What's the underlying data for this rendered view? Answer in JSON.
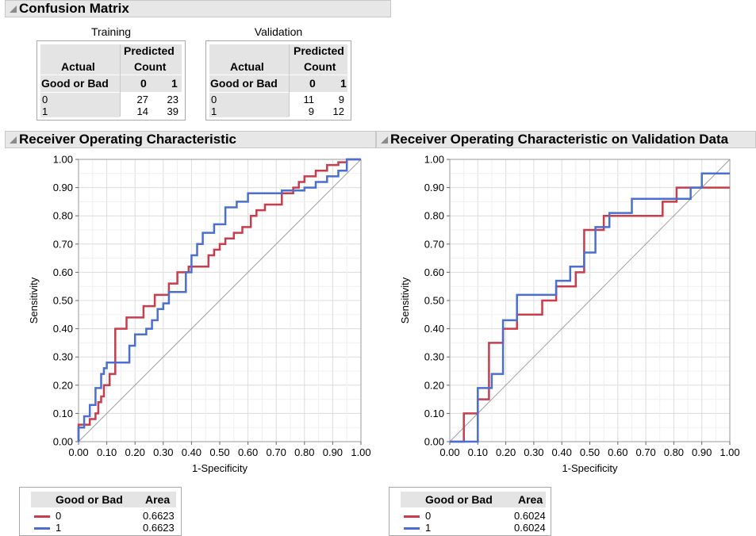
{
  "confusion_matrix": {
    "title": "Confusion Matrix",
    "tables": [
      {
        "caption": "Training",
        "header_actual": "Actual",
        "header_predicted": "Predicted",
        "header_count": "Count",
        "row_label": "Good or Bad",
        "col_labels": [
          "0",
          "1"
        ],
        "rows": [
          {
            "label": "0",
            "values": [
              "27",
              "23"
            ]
          },
          {
            "label": "1",
            "values": [
              "14",
              "39"
            ]
          }
        ]
      },
      {
        "caption": "Validation",
        "header_actual": "Actual",
        "header_predicted": "Predicted",
        "header_count": "Count",
        "row_label": "Good or Bad",
        "col_labels": [
          "0",
          "1"
        ],
        "rows": [
          {
            "label": "0",
            "values": [
              "11",
              "9"
            ]
          },
          {
            "label": "1",
            "values": [
              "9",
              "12"
            ]
          }
        ]
      }
    ]
  },
  "colors": {
    "series0": "#c83c4c",
    "series1": "#4a6fd0",
    "diagonal": "#a0a0a0",
    "grid": "#e2e2e2"
  },
  "chart_data": [
    {
      "type": "line",
      "title": "Receiver Operating Characteristic",
      "xlabel": "1-Specificity",
      "ylabel": "Sensitivity",
      "xlim": [
        0,
        1
      ],
      "ylim": [
        0,
        1
      ],
      "grid": true,
      "x_ticks": [
        "0.00",
        "0.10",
        "0.20",
        "0.30",
        "0.40",
        "0.50",
        "0.60",
        "0.70",
        "0.80",
        "0.90",
        "1.00"
      ],
      "y_ticks": [
        "0.00",
        "0.10",
        "0.20",
        "0.30",
        "0.40",
        "0.50",
        "0.60",
        "0.70",
        "0.80",
        "0.90",
        "1.00"
      ],
      "legend": {
        "header_label": "Good or Bad",
        "header_value": "Area",
        "placement": "below"
      },
      "series": [
        {
          "name": "0",
          "area": "0.6623",
          "x": [
            0,
            0,
            0.02,
            0.04,
            0.04,
            0.06,
            0.06,
            0.07,
            0.07,
            0.08,
            0.08,
            0.09,
            0.09,
            0.11,
            0.11,
            0.13,
            0.13,
            0.17,
            0.17,
            0.23,
            0.23,
            0.27,
            0.27,
            0.32,
            0.32,
            0.35,
            0.35,
            0.39,
            0.39,
            0.46,
            0.46,
            0.48,
            0.48,
            0.5,
            0.5,
            0.52,
            0.52,
            0.55,
            0.55,
            0.58,
            0.58,
            0.61,
            0.61,
            0.63,
            0.63,
            0.66,
            0.66,
            0.72,
            0.72,
            0.76,
            0.76,
            0.78,
            0.78,
            0.8,
            0.8,
            0.84,
            0.84,
            0.88,
            0.88,
            0.92,
            0.92,
            0.95,
            0.95,
            1.0
          ],
          "y": [
            0,
            0.06,
            0.06,
            0.06,
            0.08,
            0.08,
            0.1,
            0.1,
            0.14,
            0.14,
            0.16,
            0.16,
            0.2,
            0.2,
            0.24,
            0.24,
            0.4,
            0.4,
            0.44,
            0.44,
            0.48,
            0.48,
            0.52,
            0.52,
            0.56,
            0.56,
            0.6,
            0.6,
            0.62,
            0.62,
            0.66,
            0.66,
            0.68,
            0.68,
            0.7,
            0.7,
            0.72,
            0.72,
            0.74,
            0.74,
            0.76,
            0.76,
            0.8,
            0.8,
            0.82,
            0.82,
            0.84,
            0.84,
            0.88,
            0.88,
            0.9,
            0.9,
            0.92,
            0.92,
            0.94,
            0.94,
            0.96,
            0.96,
            0.98,
            0.98,
            0.99,
            0.99,
            1.0,
            1.0
          ]
        },
        {
          "name": "1",
          "area": "0.6623",
          "x": [
            0,
            0,
            0.02,
            0.02,
            0.04,
            0.04,
            0.06,
            0.06,
            0.08,
            0.08,
            0.09,
            0.09,
            0.1,
            0.1,
            0.18,
            0.18,
            0.2,
            0.2,
            0.24,
            0.24,
            0.26,
            0.26,
            0.28,
            0.28,
            0.3,
            0.3,
            0.32,
            0.32,
            0.38,
            0.38,
            0.4,
            0.4,
            0.42,
            0.42,
            0.44,
            0.44,
            0.48,
            0.48,
            0.52,
            0.52,
            0.56,
            0.56,
            0.6,
            0.6,
            0.72,
            0.72,
            0.8,
            0.8,
            0.84,
            0.84,
            0.88,
            0.88,
            0.92,
            0.92,
            0.95,
            0.95,
            1.0
          ],
          "y": [
            0,
            0.05,
            0.05,
            0.09,
            0.09,
            0.13,
            0.13,
            0.19,
            0.19,
            0.24,
            0.24,
            0.26,
            0.26,
            0.28,
            0.28,
            0.34,
            0.34,
            0.38,
            0.38,
            0.4,
            0.4,
            0.43,
            0.43,
            0.47,
            0.47,
            0.49,
            0.49,
            0.53,
            0.53,
            0.6,
            0.6,
            0.66,
            0.66,
            0.7,
            0.7,
            0.74,
            0.74,
            0.77,
            0.77,
            0.83,
            0.83,
            0.85,
            0.85,
            0.88,
            0.88,
            0.89,
            0.89,
            0.9,
            0.9,
            0.92,
            0.92,
            0.94,
            0.94,
            0.96,
            0.96,
            1.0,
            1.0
          ]
        }
      ]
    },
    {
      "type": "line",
      "title": "Receiver Operating Characteristic on Validation Data",
      "xlabel": "1-Specificity",
      "ylabel": "Sensitivity",
      "xlim": [
        0,
        1
      ],
      "ylim": [
        0,
        1
      ],
      "grid": true,
      "x_ticks": [
        "0.00",
        "0.10",
        "0.20",
        "0.30",
        "0.40",
        "0.50",
        "0.60",
        "0.70",
        "0.80",
        "0.90",
        "1.00"
      ],
      "y_ticks": [
        "0.00",
        "0.10",
        "0.20",
        "0.30",
        "0.40",
        "0.50",
        "0.60",
        "0.70",
        "0.80",
        "0.90",
        "1.00"
      ],
      "legend": {
        "header_label": "Good or Bad",
        "header_value": "Area",
        "placement": "below"
      },
      "series": [
        {
          "name": "0",
          "area": "0.6024",
          "x": [
            0,
            0.05,
            0.05,
            0.1,
            0.1,
            0.14,
            0.14,
            0.19,
            0.19,
            0.24,
            0.24,
            0.26,
            0.26,
            0.33,
            0.33,
            0.38,
            0.38,
            0.45,
            0.45,
            0.48,
            0.48,
            0.55,
            0.55,
            0.57,
            0.57,
            0.76,
            0.76,
            0.81,
            0.81,
            0.9,
            0.9,
            1.0
          ],
          "y": [
            0,
            0,
            0.1,
            0.1,
            0.15,
            0.15,
            0.35,
            0.35,
            0.4,
            0.4,
            0.45,
            0.45,
            0.45,
            0.45,
            0.5,
            0.5,
            0.55,
            0.55,
            0.6,
            0.6,
            0.75,
            0.75,
            0.8,
            0.8,
            0.8,
            0.8,
            0.85,
            0.85,
            0.9,
            0.9,
            0.9,
            0.9
          ]
        },
        {
          "name": "1",
          "area": "0.6024",
          "x": [
            0,
            0.1,
            0.1,
            0.14,
            0.14,
            0.15,
            0.15,
            0.19,
            0.19,
            0.24,
            0.24,
            0.38,
            0.38,
            0.43,
            0.43,
            0.48,
            0.48,
            0.52,
            0.52,
            0.57,
            0.57,
            0.65,
            0.65,
            0.81,
            0.81,
            0.86,
            0.86,
            0.9,
            0.9,
            1.0
          ],
          "y": [
            0,
            0,
            0.19,
            0.19,
            0.19,
            0.19,
            0.24,
            0.24,
            0.43,
            0.43,
            0.52,
            0.52,
            0.57,
            0.57,
            0.62,
            0.62,
            0.67,
            0.67,
            0.76,
            0.76,
            0.81,
            0.81,
            0.86,
            0.86,
            0.86,
            0.86,
            0.9,
            0.9,
            0.95,
            0.95
          ]
        }
      ]
    }
  ]
}
